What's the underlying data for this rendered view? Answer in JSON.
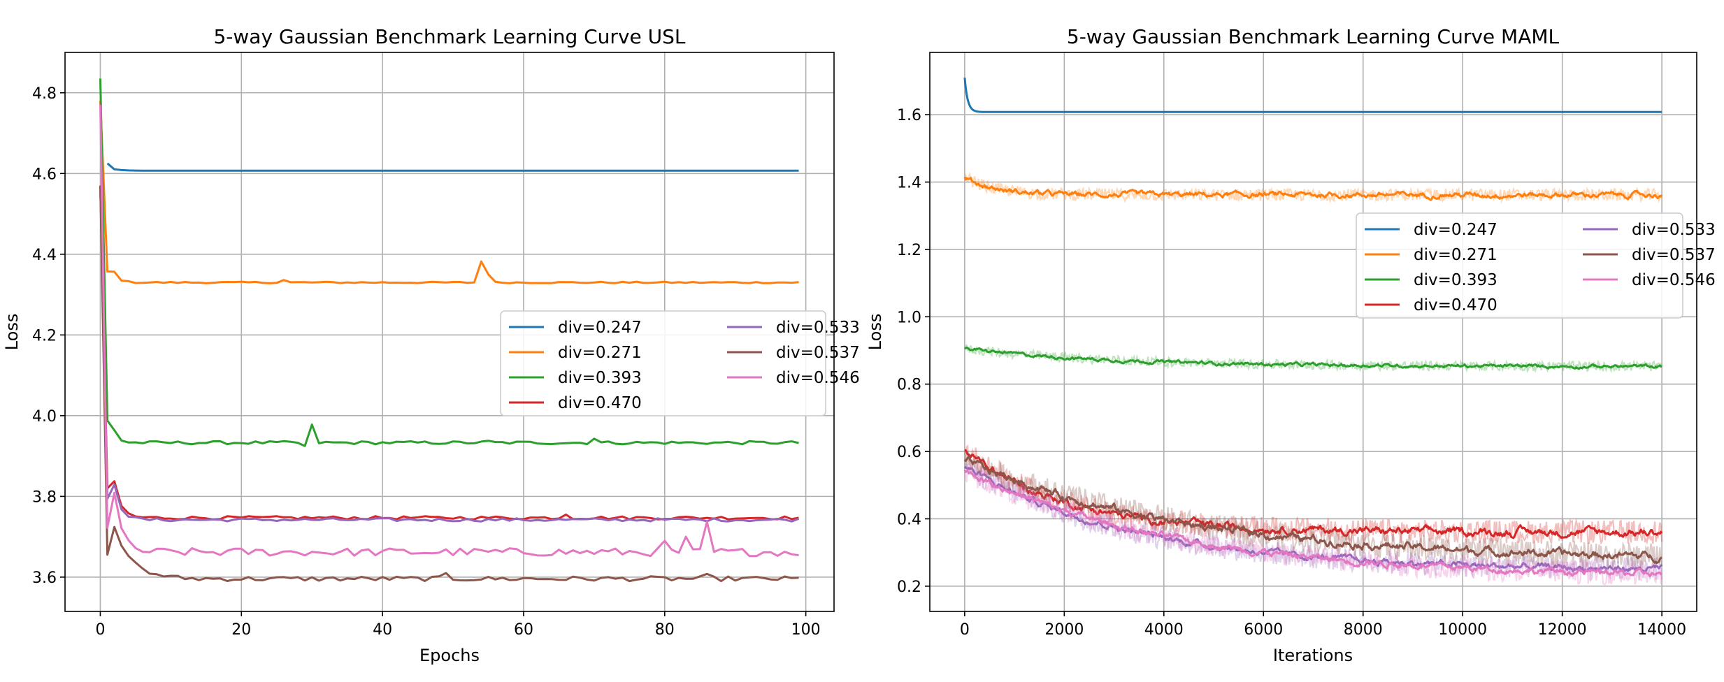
{
  "colors": {
    "div_0.247": "#1f77b4",
    "div_0.271": "#ff7f0e",
    "div_0.393": "#2ca02c",
    "div_0.470": "#d62728",
    "div_0.533": "#9467bd",
    "div_0.537": "#8c564b",
    "div_0.546": "#e377c2"
  },
  "chart_data": [
    {
      "type": "line",
      "title": "5-way Gaussian Benchmark Learning Curve USL",
      "xlabel": "Epochs",
      "ylabel": "Loss",
      "xlim": [
        -5,
        104
      ],
      "ylim": [
        3.515,
        4.9
      ],
      "xticks": [
        0,
        20,
        40,
        60,
        80,
        100
      ],
      "yticks": [
        3.6,
        3.8,
        4.0,
        4.2,
        4.4,
        4.6,
        4.8
      ],
      "xtick_labels": [
        "0",
        "20",
        "40",
        "60",
        "80",
        "100"
      ],
      "ytick_labels": [
        "3.6",
        "3.8",
        "4.0",
        "4.2",
        "4.4",
        "4.6",
        "4.8"
      ],
      "grid": true,
      "legend_loc": "center-right",
      "legend_columns": 2,
      "x_points": 100,
      "series": [
        {
          "name": "div=0.247",
          "start_x": 1,
          "start": 4.625,
          "plateau": 4.607,
          "decay": 1.2,
          "noise": 0.0,
          "spikes": []
        },
        {
          "name": "div=0.271",
          "start_x": 0,
          "start": 4.78,
          "plateau": 4.33,
          "decay": 0.7,
          "noise": 0.002,
          "spikes": [
            [
              54,
              4.382
            ],
            [
              55,
              4.35
            ],
            [
              26,
              4.336
            ]
          ]
        },
        {
          "name": "div=0.393",
          "start_x": 0,
          "start": 4.835,
          "plateau": 3.933,
          "decay": 0.6,
          "noise": 0.004,
          "spikes": [
            [
              30,
              3.978
            ],
            [
              29,
              3.925
            ],
            [
              70,
              3.943
            ],
            [
              55,
              3.938
            ]
          ]
        },
        {
          "name": "div=0.470",
          "start_x": 0,
          "start": 4.57,
          "plateau": 3.747,
          "decay": 0.9,
          "noise": 0.004,
          "spikes": [
            [
              1,
              3.82
            ],
            [
              66,
              3.755
            ]
          ]
        },
        {
          "name": "div=0.533",
          "start_x": 0,
          "start": 4.57,
          "plateau": 3.742,
          "decay": 0.9,
          "noise": 0.004,
          "spikes": []
        },
        {
          "name": "div=0.537",
          "start_x": 0,
          "start": 4.57,
          "plateau": 3.596,
          "decay": 1.8,
          "noise": 0.006,
          "spikes": [
            [
              49,
              3.61
            ],
            [
              86,
              3.608
            ]
          ]
        },
        {
          "name": "div=0.546",
          "start_x": 0,
          "start": 4.77,
          "plateau": 3.662,
          "decay": 1.0,
          "noise": 0.01,
          "spikes": [
            [
              86,
              3.737
            ],
            [
              83,
              3.7
            ],
            [
              80,
              3.69
            ]
          ]
        }
      ]
    },
    {
      "type": "line",
      "title": "5-way Gaussian Benchmark Learning Curve MAML",
      "xlabel": "Iterations",
      "ylabel": "Loss",
      "xlim": [
        -700,
        14700
      ],
      "ylim": [
        0.125,
        1.785
      ],
      "xticks": [
        0,
        2000,
        4000,
        6000,
        8000,
        10000,
        12000,
        14000
      ],
      "yticks": [
        0.2,
        0.4,
        0.6,
        0.8,
        1.0,
        1.2,
        1.4,
        1.6
      ],
      "xtick_labels": [
        "0",
        "2000",
        "4000",
        "6000",
        "8000",
        "10000",
        "12000",
        "14000"
      ],
      "ytick_labels": [
        "0.2",
        "0.4",
        "0.6",
        "0.8",
        "1.0",
        "1.2",
        "1.4",
        "1.6"
      ],
      "grid": true,
      "legend_loc": "upper-right",
      "legend_columns": 2,
      "x_max": 14000,
      "series": [
        {
          "name": "div=0.247",
          "start": 1.71,
          "end": 1.608,
          "tau": 60,
          "raw_noise": 0.0,
          "smooth_noise": 0.0
        },
        {
          "name": "div=0.271",
          "start": 1.415,
          "end": 1.362,
          "tau": 600,
          "raw_noise": 0.018,
          "smooth_noise": 0.008
        },
        {
          "name": "div=0.393",
          "start": 0.905,
          "end": 0.852,
          "tau": 3000,
          "raw_noise": 0.014,
          "smooth_noise": 0.005
        },
        {
          "name": "div=0.470",
          "start": 0.605,
          "end": 0.36,
          "tau": 2000,
          "raw_noise": 0.035,
          "smooth_noise": 0.012
        },
        {
          "name": "div=0.533",
          "start": 0.555,
          "end": 0.245,
          "tau": 3500,
          "raw_noise": 0.035,
          "smooth_noise": 0.01
        },
        {
          "name": "div=0.537",
          "start": 0.575,
          "end": 0.275,
          "tau": 4500,
          "raw_noise": 0.04,
          "smooth_noise": 0.012
        },
        {
          "name": "div=0.546",
          "start": 0.545,
          "end": 0.225,
          "tau": 4200,
          "raw_noise": 0.035,
          "smooth_noise": 0.01
        }
      ]
    }
  ]
}
